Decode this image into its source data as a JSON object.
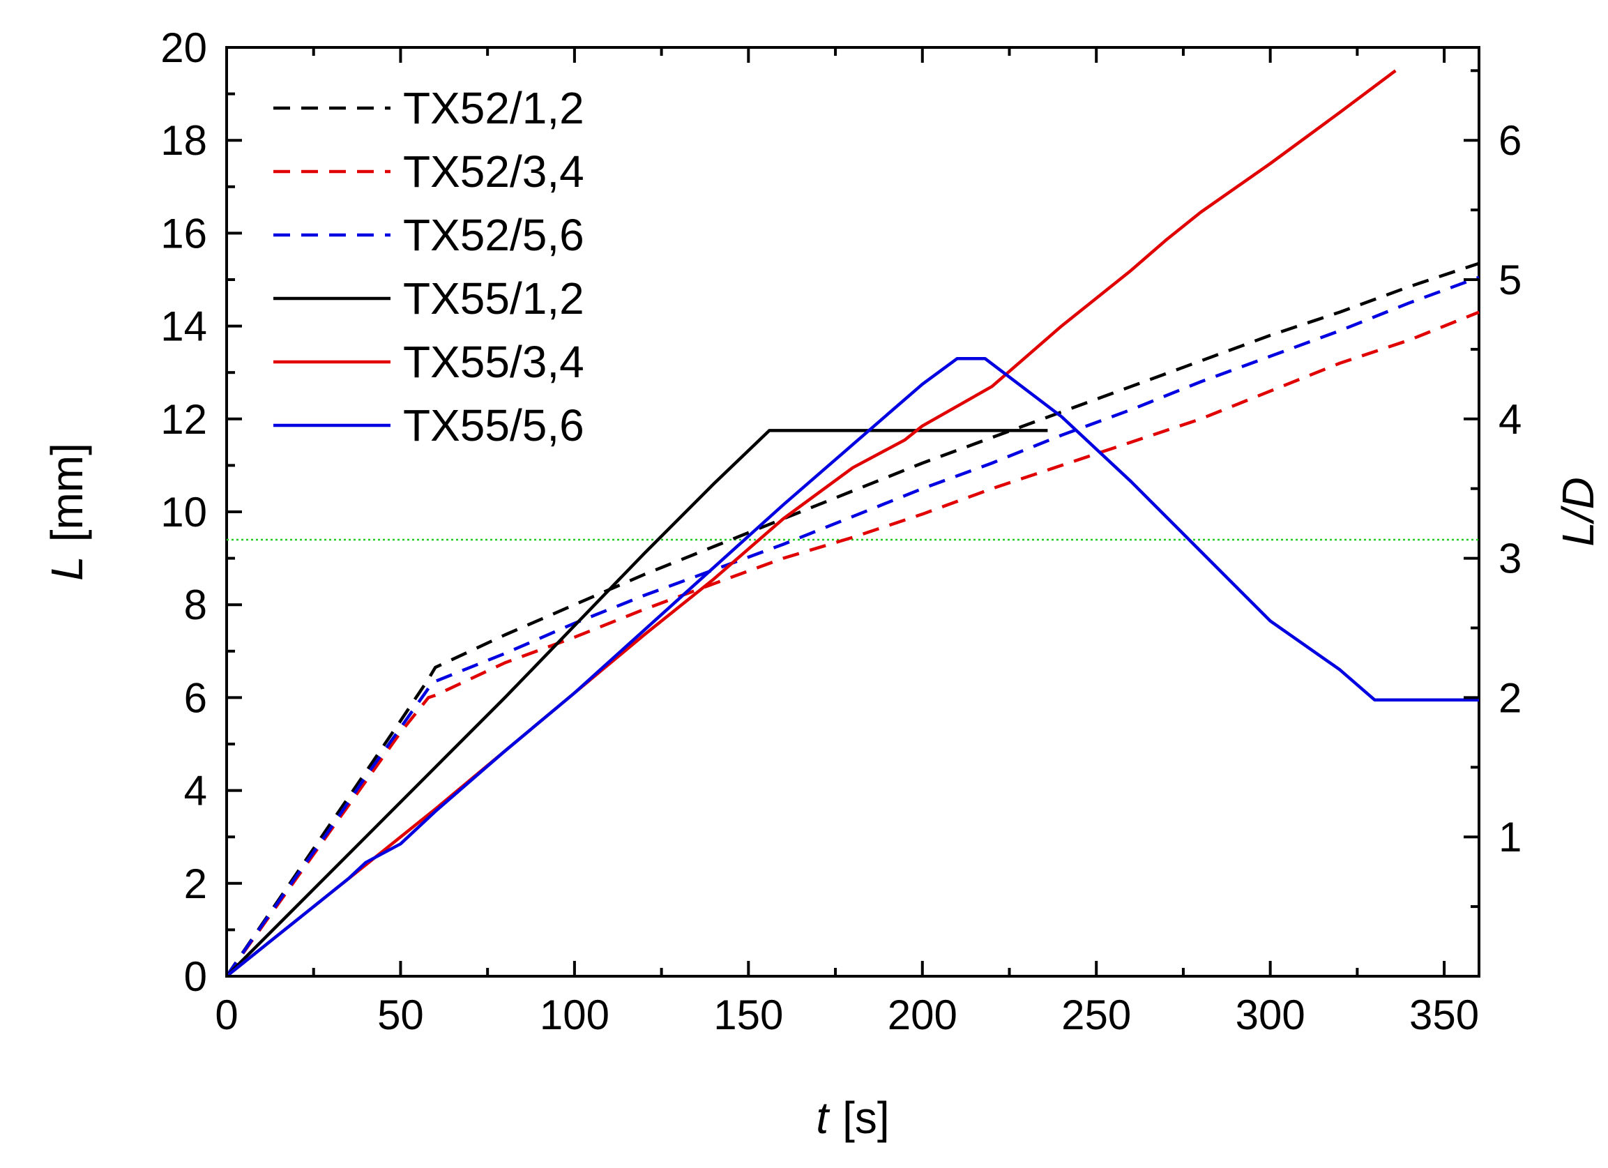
{
  "chart_data": {
    "type": "line",
    "xlabel_var": "t",
    "xlabel_unit": "[s]",
    "ylabel_var": "L",
    "ylabel_unit": "[mm]",
    "y2label": "L/D",
    "xlim": [
      0,
      360
    ],
    "ylim": [
      0,
      20
    ],
    "y2_scale_mm_per_unit": 3.0,
    "x_ticks": [
      0,
      50,
      100,
      150,
      200,
      250,
      300,
      350
    ],
    "y_ticks": [
      0,
      2,
      4,
      6,
      8,
      10,
      12,
      14,
      16,
      18,
      20
    ],
    "y2_ticks": [
      1,
      2,
      3,
      4,
      5,
      6
    ],
    "grid": false,
    "legend_position": "top-left",
    "reference_line": {
      "y": 9.4,
      "color": "#22cc22",
      "style": "dotted"
    },
    "series": [
      {
        "name": "TX52/1,2",
        "color": "#000000",
        "style": "dashed",
        "x": [
          0,
          10,
          20,
          30,
          40,
          50,
          58,
          60,
          80,
          100,
          120,
          140,
          160,
          180,
          200,
          220,
          240,
          260,
          280,
          300,
          320,
          340,
          360
        ],
        "y": [
          0,
          1.1,
          2.2,
          3.3,
          4.4,
          5.5,
          6.4,
          6.65,
          7.35,
          8.0,
          8.65,
          9.25,
          9.85,
          10.45,
          11.05,
          11.6,
          12.15,
          12.7,
          13.25,
          13.8,
          14.3,
          14.85,
          15.35
        ]
      },
      {
        "name": "TX52/3,4",
        "color": "#e00000",
        "style": "dashed",
        "x": [
          0,
          10,
          20,
          30,
          40,
          50,
          58,
          60,
          80,
          100,
          120,
          140,
          160,
          180,
          200,
          220,
          240,
          260,
          280,
          300,
          320,
          340,
          360
        ],
        "y": [
          0,
          1.05,
          2.1,
          3.15,
          4.2,
          5.25,
          6.0,
          6.05,
          6.75,
          7.3,
          7.9,
          8.45,
          9.0,
          9.45,
          9.95,
          10.5,
          11.0,
          11.5,
          12.0,
          12.6,
          13.2,
          13.7,
          14.3
        ]
      },
      {
        "name": "TX52/5,6",
        "color": "#0000e0",
        "style": "dashed",
        "x": [
          0,
          10,
          20,
          30,
          40,
          50,
          58,
          60,
          80,
          100,
          120,
          140,
          160,
          180,
          200,
          220,
          240,
          260,
          280,
          300,
          320,
          340,
          360
        ],
        "y": [
          0,
          1.08,
          2.15,
          3.2,
          4.3,
          5.35,
          6.2,
          6.35,
          6.95,
          7.6,
          8.2,
          8.75,
          9.3,
          9.9,
          10.5,
          11.05,
          11.65,
          12.2,
          12.8,
          13.35,
          13.9,
          14.5,
          15.05
        ]
      },
      {
        "name": "TX55/1,2",
        "color": "#000000",
        "style": "solid",
        "x": [
          0,
          20,
          40,
          60,
          80,
          100,
          120,
          140,
          156,
          160,
          180,
          200,
          220,
          236
        ],
        "y": [
          0,
          1.5,
          3.0,
          4.5,
          6.0,
          7.55,
          9.1,
          10.6,
          11.75,
          11.75,
          11.75,
          11.75,
          11.75,
          11.75
        ]
      },
      {
        "name": "TX55/3,4",
        "color": "#e00000",
        "style": "solid",
        "x": [
          0,
          20,
          40,
          60,
          80,
          100,
          120,
          140,
          160,
          180,
          195,
          200,
          220,
          240,
          260,
          270,
          280,
          300,
          320,
          336
        ],
        "y": [
          0,
          1.2,
          2.4,
          3.6,
          4.85,
          6.1,
          7.35,
          8.55,
          9.85,
          10.95,
          11.55,
          11.85,
          12.7,
          14.0,
          15.2,
          15.85,
          16.45,
          17.5,
          18.6,
          19.5
        ]
      },
      {
        "name": "TX55/5,6",
        "color": "#0000e0",
        "style": "solid",
        "x": [
          0,
          20,
          35,
          40,
          50,
          60,
          80,
          100,
          120,
          140,
          160,
          180,
          200,
          210,
          218,
          240,
          260,
          280,
          300,
          320,
          330,
          360
        ],
        "y": [
          0,
          1.2,
          2.1,
          2.45,
          2.85,
          3.55,
          4.85,
          6.1,
          7.45,
          8.8,
          10.15,
          11.45,
          12.75,
          13.3,
          13.3,
          12.05,
          10.65,
          9.15,
          7.65,
          6.6,
          5.95,
          5.95
        ]
      }
    ]
  }
}
